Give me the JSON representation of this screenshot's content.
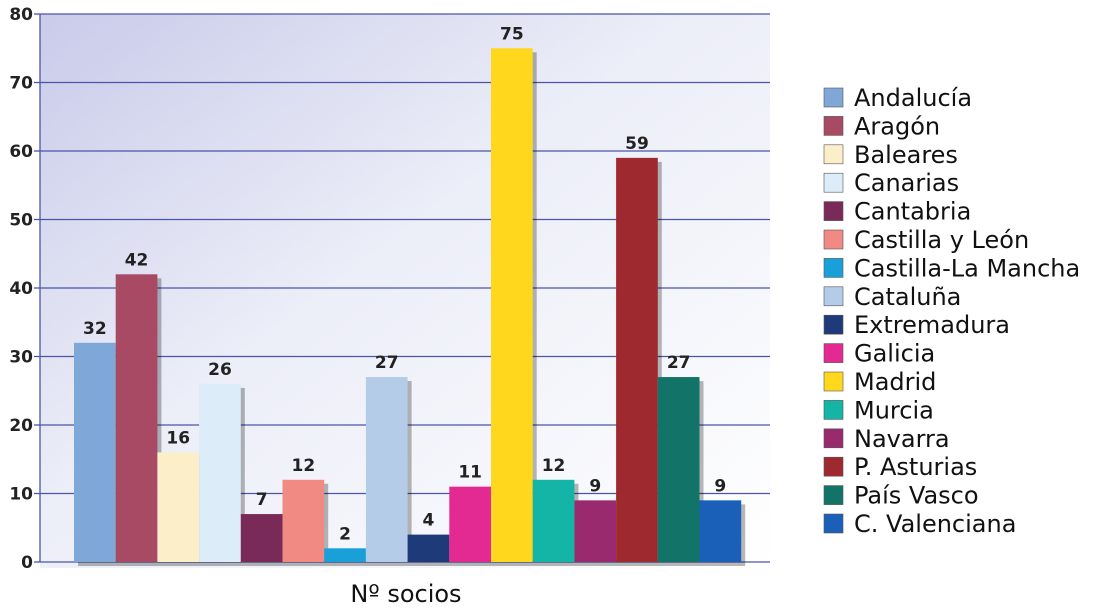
{
  "chart_data": {
    "type": "bar",
    "title": "",
    "xlabel": "Nº socios",
    "ylabel": "",
    "ylim": [
      0,
      80
    ],
    "yticks": [
      0,
      10,
      20,
      30,
      40,
      50,
      60,
      70,
      80
    ],
    "grid": true,
    "legend_position": "right",
    "series": [
      {
        "name": "Andalucía",
        "value": 32,
        "color": "#7fa8d8"
      },
      {
        "name": "Aragón",
        "value": 42,
        "color": "#a84a64"
      },
      {
        "name": "Baleares",
        "value": 16,
        "color": "#fbeec8"
      },
      {
        "name": "Canarias",
        "value": 26,
        "color": "#dcecf8"
      },
      {
        "name": "Cantabria",
        "value": 7,
        "color": "#7a2a58"
      },
      {
        "name": "Castilla y León",
        "value": 12,
        "color": "#f08a82"
      },
      {
        "name": "Castilla-La Mancha",
        "value": 2,
        "color": "#1aa0d8"
      },
      {
        "name": "Cataluña",
        "value": 27,
        "color": "#b4cce8"
      },
      {
        "name": "Extremadura",
        "value": 4,
        "color": "#1e3a78"
      },
      {
        "name": "Galicia",
        "value": 11,
        "color": "#e22a92"
      },
      {
        "name": "Madrid",
        "value": 75,
        "color": "#ffd81e"
      },
      {
        "name": "Murcia",
        "value": 12,
        "color": "#14b4a6"
      },
      {
        "name": "Navarra",
        "value": 9,
        "color": "#9a2a6e"
      },
      {
        "name": "P. Asturias",
        "value": 59,
        "color": "#9e2a30"
      },
      {
        "name": "País Vasco",
        "value": 27,
        "color": "#127468"
      },
      {
        "name": "C. Valenciana",
        "value": 9,
        "color": "#1a60b8"
      }
    ]
  }
}
